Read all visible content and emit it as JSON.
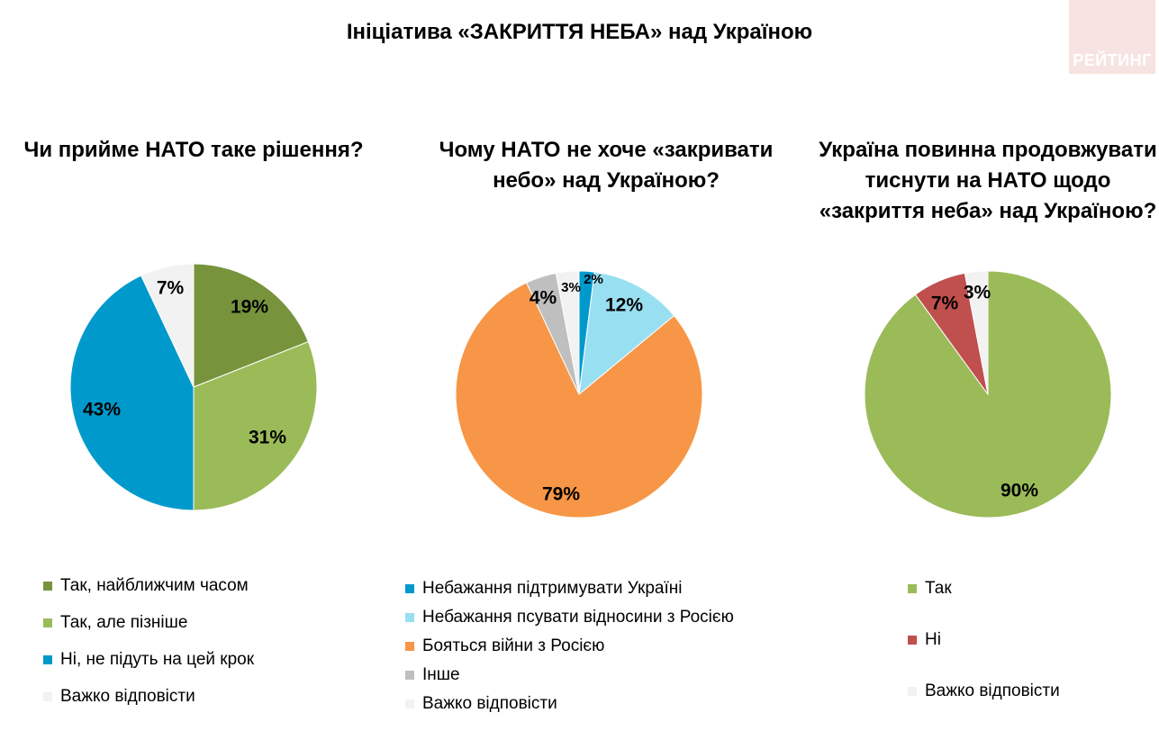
{
  "header": {
    "title": "Ініціатива «ЗАКРИТТЯ НЕБА» над Україною",
    "logo": "РЕЙТИНГ"
  },
  "chart_data": [
    {
      "type": "pie",
      "title_lines": [
        "Чи прийме НАТО таке рішення?"
      ],
      "slices": [
        {
          "label": "Так, найближчим часом",
          "value": 19,
          "display": "19%",
          "color": "#77933c"
        },
        {
          "label": "Так, але пізніше",
          "value": 31,
          "display": "31%",
          "color": "#9bbb59"
        },
        {
          "label": "Ні, не підуть на цей крок",
          "value": 43,
          "display": "43%",
          "color": "#0099cc"
        },
        {
          "label": "Важко відповісти",
          "value": 7,
          "display": "7%",
          "color": "#f2f2f2"
        }
      ]
    },
    {
      "type": "pie",
      "title_lines": [
        "Чому НАТО не хоче «закривати",
        "небо» над Україною?"
      ],
      "slices": [
        {
          "label": "Небажання підтримувати Україні",
          "value": 2,
          "display": "2%",
          "color": "#0099cc"
        },
        {
          "label": "Небажання псувати відносини з Росією",
          "value": 12,
          "display": "12%",
          "color": "#99dff2"
        },
        {
          "label": "Бояться війни з Росією",
          "value": 79,
          "display": "79%",
          "color": "#f79646"
        },
        {
          "label": "Інше",
          "value": 4,
          "display": "4%",
          "color": "#bfbfbf"
        },
        {
          "label": "Важко відповісти",
          "value": 3,
          "display": "3%",
          "color": "#f2f2f2"
        }
      ]
    },
    {
      "type": "pie",
      "title_lines": [
        "Україна повинна продовжувати",
        "тиснути на НАТО щодо",
        "«закриття неба» над Україною?"
      ],
      "slices": [
        {
          "label": "Так",
          "value": 90,
          "display": "90%",
          "color": "#9bbb59"
        },
        {
          "label": "Ні",
          "value": 7,
          "display": "7%",
          "color": "#c0504d"
        },
        {
          "label": "Важко відповісти",
          "value": 3,
          "display": "3%",
          "color": "#f2f2f2"
        }
      ]
    }
  ]
}
